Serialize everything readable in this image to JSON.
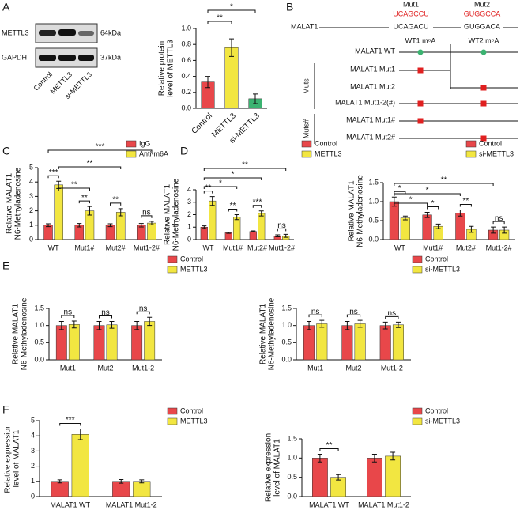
{
  "panel_labels": [
    "A",
    "B",
    "C",
    "D",
    "E",
    "F"
  ],
  "blot": {
    "rows": [
      "METTL3",
      "GAPDH"
    ],
    "sizes": [
      "64kDa",
      "37kDa"
    ],
    "lanes": [
      "Control",
      "METTL3",
      "si-METTL3"
    ]
  },
  "diagram": {
    "mut1": "Mut1",
    "mut1_seq": "UCAGCCU",
    "mut2": "Mut2",
    "mut2_seq": "GUGGCCA",
    "gene": "MALAT1",
    "wt1_seq": "UCAGACU",
    "wt2_seq": "GUGGACA",
    "site1": "WT1 m⁶A",
    "site2": "WT2 m⁶A",
    "rows": [
      "MALAT1 WT",
      "MALAT1 Mut1",
      "MALAT1 Mut2",
      "MALAT1 Mut1-2(#)",
      "MALAT1 Mut1#",
      "MALAT1 Mut2#"
    ],
    "groups": [
      "Muts",
      "Muts#"
    ]
  },
  "chart_data": [
    {
      "type": "bar",
      "ylabel": [
        "Relative protein",
        "level of METTL3"
      ],
      "categories": [
        "Control",
        "METTL3",
        "si-METTL3"
      ],
      "values": [
        0.33,
        0.76,
        0.12
      ],
      "errors": [
        0.07,
        0.11,
        0.06
      ],
      "colors": [
        "#e8474a",
        "#f2e641",
        "#3bb371"
      ],
      "ylim": [
        0,
        1.0
      ],
      "yticks": [
        {
          "value": 0,
          "label": "0.0"
        },
        0.2,
        0.4,
        0.6,
        0.8,
        {
          "value": 1,
          "label": "1.0"
        }
      ],
      "annotations": [
        "**",
        "*"
      ]
    },
    {
      "type": "bar",
      "ylabel": [
        "Relative MALAT1",
        "N6-Methyladenosine"
      ],
      "categories": [
        "WT",
        "Mut1#",
        "Mut2#",
        "Mut1-2#"
      ],
      "series": [
        {
          "name": "IgG",
          "color": "#e8474a",
          "values": [
            1.0,
            1.0,
            1.0,
            1.0
          ],
          "errors": [
            0.1,
            0.12,
            0.1,
            0.12
          ]
        },
        {
          "name": "Anti-m6A",
          "color": "#f2e641",
          "values": [
            3.8,
            2.0,
            1.9,
            1.15
          ],
          "errors": [
            0.25,
            0.3,
            0.25,
            0.12
          ]
        }
      ],
      "ylim": [
        0,
        5
      ],
      "yticks": [
        0,
        1,
        2,
        3,
        4,
        5
      ],
      "annotations": [
        "***",
        "**",
        "**",
        "ns",
        "**",
        "**",
        "***"
      ]
    },
    {
      "type": "bar",
      "ylabel": [
        "Relative MALAT1",
        "N6-Methyladenosine"
      ],
      "categories": [
        "WT",
        "Mut1#",
        "Mut2#",
        "Mut1-2#"
      ],
      "series": [
        {
          "name": "Control",
          "color": "#e8474a",
          "values": [
            1.0,
            0.55,
            0.65,
            0.3
          ],
          "errors": [
            0.1,
            0.05,
            0.05,
            0.08
          ]
        },
        {
          "name": "METTL3",
          "color": "#f2e641",
          "values": [
            3.1,
            1.8,
            2.1,
            0.3
          ],
          "errors": [
            0.35,
            0.2,
            0.2,
            0.12
          ]
        }
      ],
      "ylim": [
        0,
        4
      ],
      "yticks": [
        0,
        1,
        2,
        3,
        4
      ],
      "annotations": [
        "**",
        "**",
        "***",
        "ns",
        "*",
        "*",
        "**"
      ]
    },
    {
      "type": "bar",
      "ylabel": [
        "Relative MALAT1",
        "N6-Methyladenosine"
      ],
      "categories": [
        "WT",
        "Mut1#",
        "Mut2#",
        "Mut1-2#"
      ],
      "series": [
        {
          "name": "Control",
          "color": "#e8474a",
          "values": [
            1.0,
            0.65,
            0.7,
            0.25
          ],
          "errors": [
            0.12,
            0.07,
            0.08,
            0.08
          ]
        },
        {
          "name": "si-METTL3",
          "color": "#f2e641",
          "values": [
            0.57,
            0.35,
            0.27,
            0.25
          ],
          "errors": [
            0.05,
            0.06,
            0.08,
            0.08
          ]
        }
      ],
      "ylim": [
        0,
        1.5
      ],
      "yticks": [
        {
          "value": 0,
          "label": "0.0"
        },
        0.5,
        {
          "value": 1,
          "label": "1.0"
        },
        1.5
      ],
      "annotations": [
        "*",
        "*",
        "**",
        "ns",
        "*",
        "*",
        "**"
      ]
    },
    {
      "type": "bar",
      "ylabel": [
        "Relative MALAT1",
        "N6-Methyladenosine"
      ],
      "categories": [
        "Mut1",
        "Mut2",
        "Mut1-2"
      ],
      "series": [
        {
          "name": "Control",
          "color": "#e8474a",
          "values": [
            1.0,
            1.0,
            1.0
          ],
          "errors": [
            0.12,
            0.12,
            0.12
          ]
        },
        {
          "name": "METTL3",
          "color": "#f2e641",
          "values": [
            1.03,
            1.02,
            1.12
          ],
          "errors": [
            0.1,
            0.1,
            0.12
          ]
        }
      ],
      "ylim": [
        0,
        1.5
      ],
      "yticks": [
        {
          "value": 0,
          "label": "0.0"
        },
        0.5,
        {
          "value": 1,
          "label": "1.0"
        },
        1.5
      ],
      "annotations": [
        "ns",
        "ns",
        "ns"
      ]
    },
    {
      "type": "bar",
      "ylabel": [
        "Relative MALAT1",
        "N6-Methyladenosine"
      ],
      "categories": [
        "Mut1",
        "Mut2",
        "Mut1-2"
      ],
      "series": [
        {
          "name": "Control",
          "color": "#e8474a",
          "values": [
            1.0,
            1.0,
            1.0
          ],
          "errors": [
            0.12,
            0.12,
            0.1
          ]
        },
        {
          "name": "si-METTL3",
          "color": "#f2e641",
          "values": [
            1.05,
            1.05,
            1.02
          ],
          "errors": [
            0.1,
            0.1,
            0.08
          ]
        }
      ],
      "ylim": [
        0,
        1.5
      ],
      "yticks": [
        {
          "value": 0,
          "label": "0.0"
        },
        0.5,
        {
          "value": 1,
          "label": "1.0"
        },
        1.5
      ],
      "annotations": [
        "ns",
        "ns",
        "ns"
      ]
    },
    {
      "type": "bar",
      "ylabel": [
        "Relative expression",
        "level of MALAT1"
      ],
      "categories": [
        "MALAT1 WT",
        "MALAT1 Mut1-2"
      ],
      "series": [
        {
          "name": "Control",
          "color": "#e8474a",
          "values": [
            1.0,
            1.0
          ],
          "errors": [
            0.1,
            0.12
          ]
        },
        {
          "name": "METTL3",
          "color": "#f2e641",
          "values": [
            4.1,
            1.0
          ],
          "errors": [
            0.35,
            0.1
          ]
        }
      ],
      "ylim": [
        0,
        5
      ],
      "yticks": [
        0,
        1,
        2,
        3,
        4,
        5
      ],
      "annotations": [
        "***"
      ]
    },
    {
      "type": "bar",
      "ylabel": [
        "Relative expression",
        "level of MALAT1"
      ],
      "categories": [
        "MALAT1 WT",
        "MALAT1 Mut1-2"
      ],
      "series": [
        {
          "name": "Control",
          "color": "#e8474a",
          "values": [
            1.0,
            1.0
          ],
          "errors": [
            0.1,
            0.1
          ]
        },
        {
          "name": "si-METTL3",
          "color": "#f2e641",
          "values": [
            0.5,
            1.05
          ],
          "errors": [
            0.07,
            0.1
          ]
        }
      ],
      "ylim": [
        0,
        1.5
      ],
      "yticks": [
        {
          "value": 0,
          "label": "0.0"
        },
        0.5,
        {
          "value": 1,
          "label": "1.0"
        },
        1.5
      ],
      "annotations": [
        "**"
      ]
    }
  ]
}
